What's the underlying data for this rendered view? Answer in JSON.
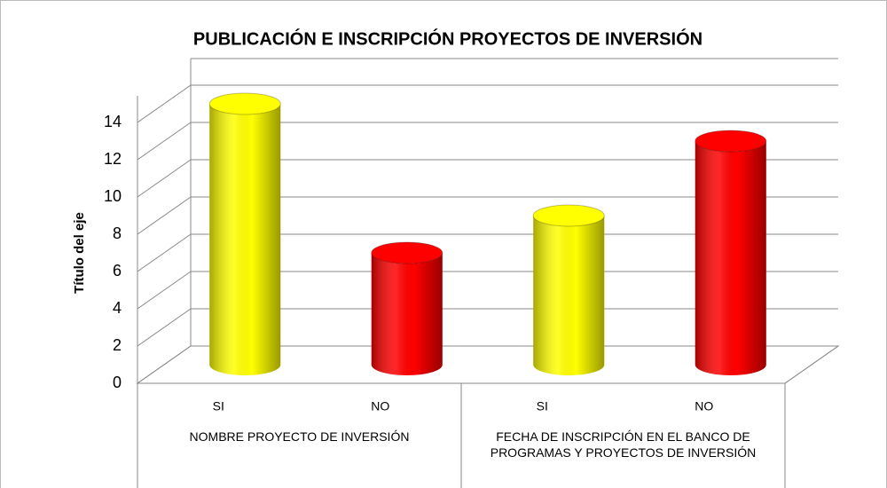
{
  "chart_data": {
    "type": "cylinder-bar",
    "title": "PUBLICACIÓN E INSCRIPCIÓN PROYECTOS DE INVERSIÓN",
    "y_axis_label": "Título del eje",
    "groups": [
      {
        "name": "NOMBRE PROYECTO DE INVERSIÓN",
        "categories": [
          "SI",
          "NO"
        ],
        "values": [
          14,
          6
        ],
        "colors": [
          "#ffff00",
          "#ff0000"
        ]
      },
      {
        "name": "FECHA DE INSCRIPCIÓN EN EL BANCO DE PROGRAMAS Y PROYECTOS DE INVERSIÓN",
        "categories": [
          "SI",
          "NO"
        ],
        "values": [
          8,
          12
        ],
        "colors": [
          "#ffff00",
          "#ff0000"
        ]
      }
    ],
    "ylim": [
      0,
      14
    ],
    "yticks": [
      0,
      2,
      4,
      6,
      8,
      10,
      12,
      14
    ],
    "grid": true
  }
}
